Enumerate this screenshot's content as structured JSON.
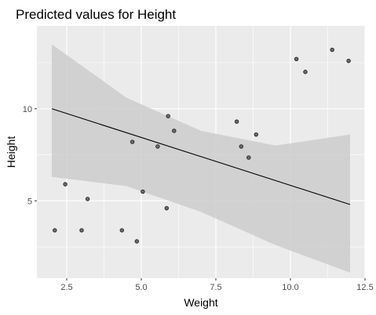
{
  "chart_data": {
    "type": "scatter",
    "title": "Predicted values for Height",
    "xlabel": "Weight",
    "ylabel": "Height",
    "xlim": [
      1.5,
      12.5
    ],
    "ylim": [
      0.8,
      14.5
    ],
    "x_ticks": [
      {
        "value": 2.5,
        "label": "2.5"
      },
      {
        "value": 5.0,
        "label": "5.0"
      },
      {
        "value": 7.5,
        "label": "7.5"
      },
      {
        "value": 10.0,
        "label": "10.0"
      },
      {
        "value": 12.5,
        "label": "12.5"
      }
    ],
    "y_ticks": [
      {
        "value": 5,
        "label": "5"
      },
      {
        "value": 10,
        "label": "10"
      }
    ],
    "grid": true,
    "points": [
      {
        "x": 2.1,
        "y": 3.4
      },
      {
        "x": 2.45,
        "y": 5.9
      },
      {
        "x": 3.0,
        "y": 3.4
      },
      {
        "x": 3.2,
        "y": 5.1
      },
      {
        "x": 4.35,
        "y": 3.4
      },
      {
        "x": 4.7,
        "y": 8.2
      },
      {
        "x": 4.85,
        "y": 2.8
      },
      {
        "x": 5.05,
        "y": 5.5
      },
      {
        "x": 5.55,
        "y": 7.95
      },
      {
        "x": 5.85,
        "y": 4.6
      },
      {
        "x": 5.9,
        "y": 9.6
      },
      {
        "x": 6.1,
        "y": 8.8
      },
      {
        "x": 8.2,
        "y": 9.3
      },
      {
        "x": 8.35,
        "y": 7.95
      },
      {
        "x": 8.6,
        "y": 7.35
      },
      {
        "x": 8.85,
        "y": 8.6
      },
      {
        "x": 10.2,
        "y": 12.7
      },
      {
        "x": 10.5,
        "y": 12.0
      },
      {
        "x": 11.4,
        "y": 13.2
      },
      {
        "x": 11.95,
        "y": 12.6
      }
    ],
    "fit_line": [
      {
        "x": 2.0,
        "y": 10.0
      },
      {
        "x": 12.0,
        "y": 4.8
      }
    ],
    "confidence_band": [
      {
        "x": 2.0,
        "lower": 6.3,
        "upper": 13.5
      },
      {
        "x": 4.5,
        "lower": 5.8,
        "upper": 10.6
      },
      {
        "x": 7.0,
        "lower": 4.4,
        "upper": 8.8
      },
      {
        "x": 9.5,
        "lower": 2.6,
        "upper": 8.0
      },
      {
        "x": 12.0,
        "lower": 1.1,
        "upper": 8.6
      }
    ],
    "colors": {
      "panel_bg": "#ebebeb",
      "grid_major": "#ffffff",
      "band": "#cccccc",
      "line": "#000000",
      "point_fill": "#6b6b6b",
      "point_stroke": "#1a1a1a"
    }
  }
}
